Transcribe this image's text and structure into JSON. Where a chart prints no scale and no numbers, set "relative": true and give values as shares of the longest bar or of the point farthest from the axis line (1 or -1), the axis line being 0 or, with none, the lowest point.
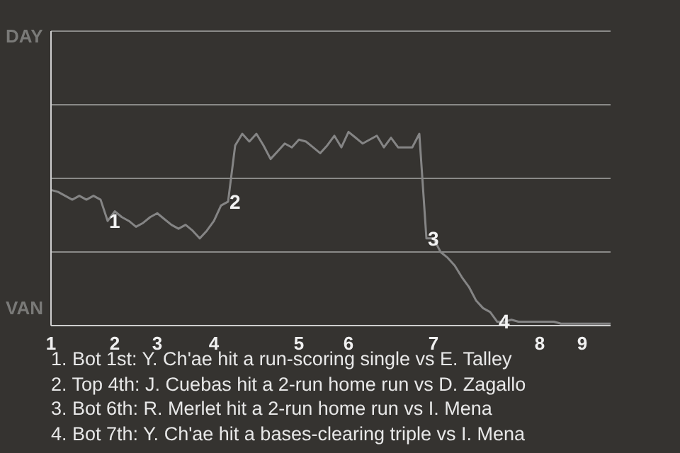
{
  "chart_data": {
    "type": "line",
    "relative": true,
    "categories": [
      "1",
      null,
      null,
      null,
      null,
      null,
      null,
      null,
      null,
      "2",
      null,
      null,
      null,
      null,
      null,
      "3",
      null,
      null,
      null,
      null,
      null,
      null,
      null,
      "4",
      null,
      null,
      null,
      null,
      null,
      null,
      null,
      null,
      null,
      null,
      null,
      "5",
      null,
      null,
      null,
      null,
      null,
      null,
      "6",
      null,
      null,
      null,
      null,
      null,
      null,
      null,
      null,
      null,
      null,
      null,
      "7",
      null,
      null,
      null,
      null,
      null,
      null,
      null,
      null,
      null,
      null,
      null,
      null,
      null,
      null,
      "8",
      null,
      null,
      null,
      null,
      null,
      "9",
      null,
      null,
      null,
      null
    ],
    "series": [
      {
        "color": "#858585",
        "values": [
          0.7,
          0.69,
          0.67,
          0.65,
          0.67,
          0.65,
          0.67,
          0.65,
          0.54,
          0.59,
          0.56,
          0.54,
          0.51,
          0.53,
          0.56,
          0.58,
          0.55,
          0.52,
          0.5,
          0.52,
          0.49,
          0.45,
          0.49,
          0.54,
          0.62,
          0.64,
          0.93,
          0.99,
          0.95,
          0.99,
          0.93,
          0.86,
          0.9,
          0.94,
          0.92,
          0.96,
          0.95,
          0.92,
          0.89,
          0.93,
          0.98,
          0.92,
          1,
          0.97,
          0.94,
          0.96,
          0.98,
          0.92,
          0.97,
          0.92,
          0.92,
          0.92,
          0.99,
          0.45,
          0.45,
          0.38,
          0.35,
          0.31,
          0.25,
          0.2,
          0.13,
          0.09,
          0.07,
          0.02,
          0.02,
          0.03,
          0.02,
          0.02,
          0.02,
          0.02,
          0.02,
          0.02,
          0.01,
          0.01,
          0.01,
          0.01,
          0.01,
          0.01,
          0.01,
          0.01
        ]
      }
    ],
    "ref_lines": [
      {
        "axis": "y",
        "value": 0.38,
        "color": "#8a8a88"
      },
      {
        "axis": "y",
        "value": 0.76,
        "color": "#8a8a88"
      },
      {
        "axis": "y",
        "value": 1.14,
        "color": "#8a8a88"
      },
      {
        "axis": "y",
        "value": 1.52,
        "color": "#8a8a88"
      }
    ],
    "marker": "none",
    "line_style": "solid",
    "annotations": [
      "DAY",
      "VAN",
      {
        "text": "1",
        "y": 0.54
      },
      {
        "text": "2",
        "y": 0.64
      },
      {
        "text": "3",
        "y": 0.45
      },
      {
        "text": "4",
        "y": 0.02
      },
      "1. Bot 1st: Y. Ch'ae hit a run-scoring single vs E. Talley",
      "2. Top 4th: J. Cuebas hit a 2-run home run vs D. Zagallo",
      "3. Bot 6th: R. Merlet hit a 2-run home run vs I. Mena",
      "4. Bot 7th: Y. Ch'ae hit a bases-clearing triple vs I. Mena"
    ]
  }
}
